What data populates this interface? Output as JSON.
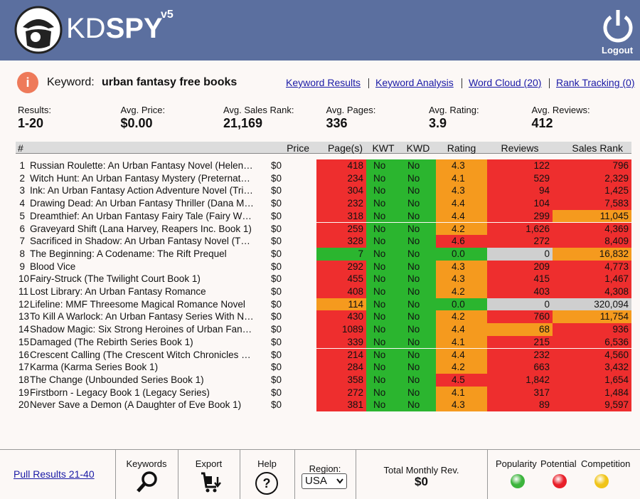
{
  "header": {
    "logo_kd": "KD",
    "logo_spy": "SPY",
    "version": "v5",
    "logout": "Logout"
  },
  "keyword": {
    "label": "Keyword:",
    "value": "urban fantasy free books",
    "info_icon": "i"
  },
  "links": [
    "Keyword Results",
    "Keyword Analysis",
    "Word Cloud (20)",
    "Rank Tracking (0)"
  ],
  "stats": [
    {
      "label": "Results:",
      "value": "1-20"
    },
    {
      "label": "Avg. Price:",
      "value": "$0.00"
    },
    {
      "label": "Avg. Sales Rank:",
      "value": "21,169"
    },
    {
      "label": "Avg. Pages:",
      "value": "336"
    },
    {
      "label": "Avg. Rating:",
      "value": "3.9"
    },
    {
      "label": "Avg. Reviews:",
      "value": "412"
    }
  ],
  "table": {
    "columns": [
      "#",
      "Price",
      "Page(s)",
      "KWT",
      "KWD",
      "Rating",
      "Reviews",
      "Sales Rank"
    ],
    "rows": [
      {
        "n": "1",
        "title": "Russian Roulette: An Urban Fantasy Novel (Helen…",
        "price": "$0",
        "pages": "418",
        "kwt": "No",
        "kwd": "No",
        "rating": "4.3",
        "reviews": "122",
        "rank": "796",
        "colors": [
          "red",
          "orange",
          "red",
          "red"
        ]
      },
      {
        "n": "2",
        "title": "Witch Hunt: An Urban Fantasy Mystery (Preternat…",
        "price": "$0",
        "pages": "234",
        "kwt": "No",
        "kwd": "No",
        "rating": "4.1",
        "reviews": "529",
        "rank": "2,329",
        "colors": [
          "red",
          "orange",
          "red",
          "red"
        ]
      },
      {
        "n": "3",
        "title": "Ink: An Urban Fantasy Action Adventure Novel (Tri…",
        "price": "$0",
        "pages": "304",
        "kwt": "No",
        "kwd": "No",
        "rating": "4.3",
        "reviews": "94",
        "rank": "1,425",
        "colors": [
          "red",
          "orange",
          "red",
          "red"
        ]
      },
      {
        "n": "4",
        "title": "Drawing Dead: An Urban Fantasy Thriller (Dana M…",
        "price": "$0",
        "pages": "232",
        "kwt": "No",
        "kwd": "No",
        "rating": "4.4",
        "reviews": "104",
        "rank": "7,583",
        "colors": [
          "red",
          "orange",
          "red",
          "red"
        ]
      },
      {
        "n": "5",
        "title": "Dreamthief: An Urban Fantasy Fairy Tale (Fairy W…",
        "price": "$0",
        "pages": "318",
        "kwt": "No",
        "kwd": "No",
        "rating": "4.4",
        "reviews": "299",
        "rank": "11,045",
        "colors": [
          "red",
          "orange",
          "red",
          "orange"
        ]
      },
      {
        "n": "6",
        "title": "Graveyard Shift (Lana Harvey, Reapers Inc. Book 1)",
        "price": "$0",
        "pages": "259",
        "kwt": "No",
        "kwd": "No",
        "rating": "4.2",
        "reviews": "1,626",
        "rank": "4,369",
        "colors": [
          "red",
          "orange",
          "red",
          "red"
        ]
      },
      {
        "n": "7",
        "title": "Sacrificed in Shadow: An Urban Fantasy Novel (T…",
        "price": "$0",
        "pages": "328",
        "kwt": "No",
        "kwd": "No",
        "rating": "4.6",
        "reviews": "272",
        "rank": "8,409",
        "colors": [
          "red",
          "red",
          "red",
          "red"
        ]
      },
      {
        "n": "8",
        "title": "The Beginning: A Codename: The Rift Prequel",
        "price": "$0",
        "pages": "7",
        "kwt": "No",
        "kwd": "No",
        "rating": "0.0",
        "reviews": "0",
        "rank": "16,832",
        "colors": [
          "green",
          "green",
          "gray",
          "orange"
        ]
      },
      {
        "n": "9",
        "title": "Blood Vice",
        "price": "$0",
        "pages": "292",
        "kwt": "No",
        "kwd": "No",
        "rating": "4.3",
        "reviews": "209",
        "rank": "4,773",
        "colors": [
          "red",
          "orange",
          "red",
          "red"
        ]
      },
      {
        "n": "10",
        "title": "Fairy-Struck (The Twilight Court Book 1)",
        "price": "$0",
        "pages": "455",
        "kwt": "No",
        "kwd": "No",
        "rating": "4.3",
        "reviews": "415",
        "rank": "1,467",
        "colors": [
          "red",
          "orange",
          "red",
          "red"
        ]
      },
      {
        "n": "11",
        "title": "Lost Library: An Urban Fantasy Romance",
        "price": "$0",
        "pages": "408",
        "kwt": "No",
        "kwd": "No",
        "rating": "4.2",
        "reviews": "403",
        "rank": "4,308",
        "colors": [
          "red",
          "orange",
          "red",
          "red"
        ]
      },
      {
        "n": "12",
        "title": "Lifeline: MMF Threesome Magical Romance Novel",
        "price": "$0",
        "pages": "114",
        "kwt": "No",
        "kwd": "No",
        "rating": "0.0",
        "reviews": "0",
        "rank": "320,094",
        "colors": [
          "orange",
          "green",
          "gray",
          "gray"
        ]
      },
      {
        "n": "13",
        "title": "To Kill A Warlock: An Urban Fantasy Series With N…",
        "price": "$0",
        "pages": "430",
        "kwt": "No",
        "kwd": "No",
        "rating": "4.2",
        "reviews": "760",
        "rank": "11,754",
        "colors": [
          "red",
          "orange",
          "red",
          "orange"
        ]
      },
      {
        "n": "14",
        "title": "Shadow Magic: Six Strong Heroines of Urban Fan…",
        "price": "$0",
        "pages": "1089",
        "kwt": "No",
        "kwd": "No",
        "rating": "4.4",
        "reviews": "68",
        "rank": "936",
        "colors": [
          "red",
          "orange",
          "orange",
          "red"
        ]
      },
      {
        "n": "15",
        "title": "Damaged (The Rebirth Series Book 1)",
        "price": "$0",
        "pages": "339",
        "kwt": "No",
        "kwd": "No",
        "rating": "4.1",
        "reviews": "215",
        "rank": "6,536",
        "colors": [
          "red",
          "orange",
          "red",
          "red"
        ]
      },
      {
        "n": "16",
        "title": "Crescent Calling (The Crescent Witch Chronicles …",
        "price": "$0",
        "pages": "214",
        "kwt": "No",
        "kwd": "No",
        "rating": "4.4",
        "reviews": "232",
        "rank": "4,560",
        "colors": [
          "red",
          "orange",
          "red",
          "red"
        ]
      },
      {
        "n": "17",
        "title": "Karma (Karma Series Book 1)",
        "price": "$0",
        "pages": "284",
        "kwt": "No",
        "kwd": "No",
        "rating": "4.2",
        "reviews": "663",
        "rank": "3,432",
        "colors": [
          "red",
          "orange",
          "red",
          "red"
        ]
      },
      {
        "n": "18",
        "title": "The Change (Unbounded Series Book 1)",
        "price": "$0",
        "pages": "358",
        "kwt": "No",
        "kwd": "No",
        "rating": "4.5",
        "reviews": "1,842",
        "rank": "1,654",
        "colors": [
          "red",
          "red",
          "red",
          "red"
        ]
      },
      {
        "n": "19",
        "title": "Firstborn - Legacy Book 1 (Legacy Series)",
        "price": "$0",
        "pages": "272",
        "kwt": "No",
        "kwd": "No",
        "rating": "4.1",
        "reviews": "317",
        "rank": "1,484",
        "colors": [
          "red",
          "orange",
          "red",
          "red"
        ]
      },
      {
        "n": "20",
        "title": "Never Save a Demon (A Daughter of Eve Book 1)",
        "price": "$0",
        "pages": "381",
        "kwt": "No",
        "kwd": "No",
        "rating": "4.3",
        "reviews": "89",
        "rank": "9,597",
        "colors": [
          "red",
          "orange",
          "red",
          "red"
        ]
      }
    ]
  },
  "footer": {
    "pull": "Pull Results 21-40",
    "keywords": "Keywords",
    "export": "Export",
    "help": "Help",
    "help_icon": "?",
    "region_label": "Region:",
    "region": "USA",
    "total_label": "Total Monthly Rev.",
    "total": "$0",
    "indicators": [
      {
        "name": "Popularity",
        "color": "#3cb43c"
      },
      {
        "name": "Potential",
        "color": "#e8202a"
      },
      {
        "name": "Competition",
        "color": "#f0c419"
      }
    ]
  }
}
